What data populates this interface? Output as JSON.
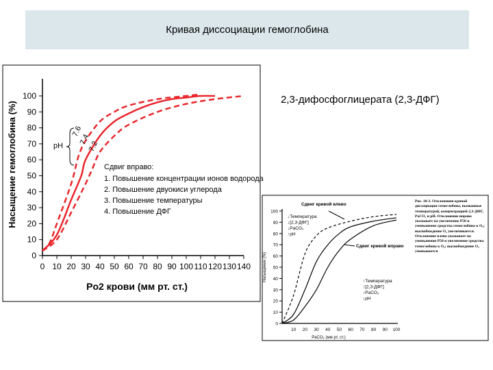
{
  "slide": {
    "title": "Кривая диссоциации гемоглобина",
    "note": "2,3-дифосфоглицерата (2,3-ДФГ)"
  },
  "colors": {
    "curve_main": "#e8262b",
    "header_bg": "#dce7eb"
  },
  "chart_data": [
    {
      "type": "line",
      "xlabel": "Po2 крови (мм рт. ст.)",
      "ylabel": "Насыщение гемоглобина (%)",
      "xlim": [
        0,
        140
      ],
      "ylim": [
        0,
        100
      ],
      "grid": false,
      "xticks": [
        "0",
        "10",
        "20",
        "30",
        "40",
        "50",
        "60",
        "70",
        "80",
        "90",
        "100",
        "110",
        "120",
        "130",
        "140"
      ],
      "yticks": [
        "0",
        "10",
        "20",
        "30",
        "40",
        "50",
        "60",
        "70",
        "80",
        "90",
        "100"
      ],
      "bracket_label": "pH",
      "series": [
        {
          "name": "7.6",
          "style": "dashed",
          "x": [
            0,
            5,
            10,
            20,
            25,
            30,
            40,
            50,
            60,
            80,
            100,
            110
          ],
          "y": [
            3,
            8,
            20,
            45,
            62,
            72,
            84,
            90,
            94,
            98,
            100,
            101
          ]
        },
        {
          "name": "7.4",
          "style": "solid",
          "x": [
            0,
            10,
            20,
            27,
            30,
            40,
            50,
            60,
            70,
            80,
            90,
            100,
            110,
            120
          ],
          "y": [
            3,
            13,
            35,
            50,
            60,
            75,
            84,
            89,
            93,
            96,
            98,
            99,
            100,
            100
          ]
        },
        {
          "name": "7.2",
          "style": "dashed",
          "x": [
            0,
            10,
            20,
            30,
            35,
            40,
            50,
            60,
            80,
            100,
            120,
            140
          ],
          "y": [
            3,
            10,
            27,
            45,
            55,
            65,
            75,
            82,
            90,
            95,
            98,
            100
          ]
        }
      ],
      "annotations": {
        "title": "Сдвиг вправо:",
        "items": [
          "1. Повышение концентрации ионов водорода",
          "2. Повышение двуокиси углерода",
          "3. Повышение температуры",
          "4. Повышение ДФГ"
        ]
      }
    },
    {
      "type": "line",
      "xlabel": "PaCO₂ (мм рт. ст.)",
      "ylabel": "Насыщение (%)",
      "xlim": [
        0,
        100
      ],
      "ylim": [
        0,
        100
      ],
      "xticks": [
        "10",
        "20",
        "30",
        "40",
        "50",
        "60",
        "70",
        "80",
        "90",
        "100"
      ],
      "yticks": [
        "0",
        "10",
        "20",
        "30",
        "40",
        "50",
        "60",
        "70",
        "80",
        "90",
        "100"
      ],
      "series": [
        {
          "style": "dashed",
          "x": [
            0,
            10,
            20,
            30,
            40,
            60,
            80,
            100
          ],
          "y": [
            0,
            25,
            62,
            78,
            85,
            91,
            95,
            97
          ]
        },
        {
          "style": "solid",
          "x": [
            0,
            10,
            20,
            30,
            40,
            50,
            60,
            80,
            100
          ],
          "y": [
            0,
            8,
            30,
            55,
            70,
            80,
            86,
            91,
            94
          ]
        },
        {
          "style": "solid",
          "x": [
            0,
            10,
            20,
            30,
            40,
            50,
            60,
            80,
            100
          ],
          "y": [
            0,
            3,
            15,
            30,
            50,
            65,
            75,
            87,
            92
          ]
        }
      ],
      "labels": {
        "left_shift": "Сдвиг кривой влево",
        "right_shift": "Сдвиг кривой вправо",
        "left_list": [
          "↓Температура",
          "↓[2,3-ДФГ]",
          "↓PaCO₂",
          "↑pH"
        ],
        "right_list": [
          "↑Температура",
          "↑[2,3-ДФГ]",
          "↑PaCO₂",
          "↓pH"
        ]
      },
      "caption": "Рис. 10-3. Отклонения кривой диссоциации гемоглобина, вызванные температурой, концентрацией 2,3-ДФГ, PaCO₂ и pH. Отклонение вправо указывает на увеличение P50 и уменьшение сродства гемоглобина к O₂; высвобождение O₂ увеличивается. Отклонение влево указывает на уменьшение P50 и увеличение сродства гемоглобина к O₂; высвобождение O₂ уменьшается"
    }
  ]
}
